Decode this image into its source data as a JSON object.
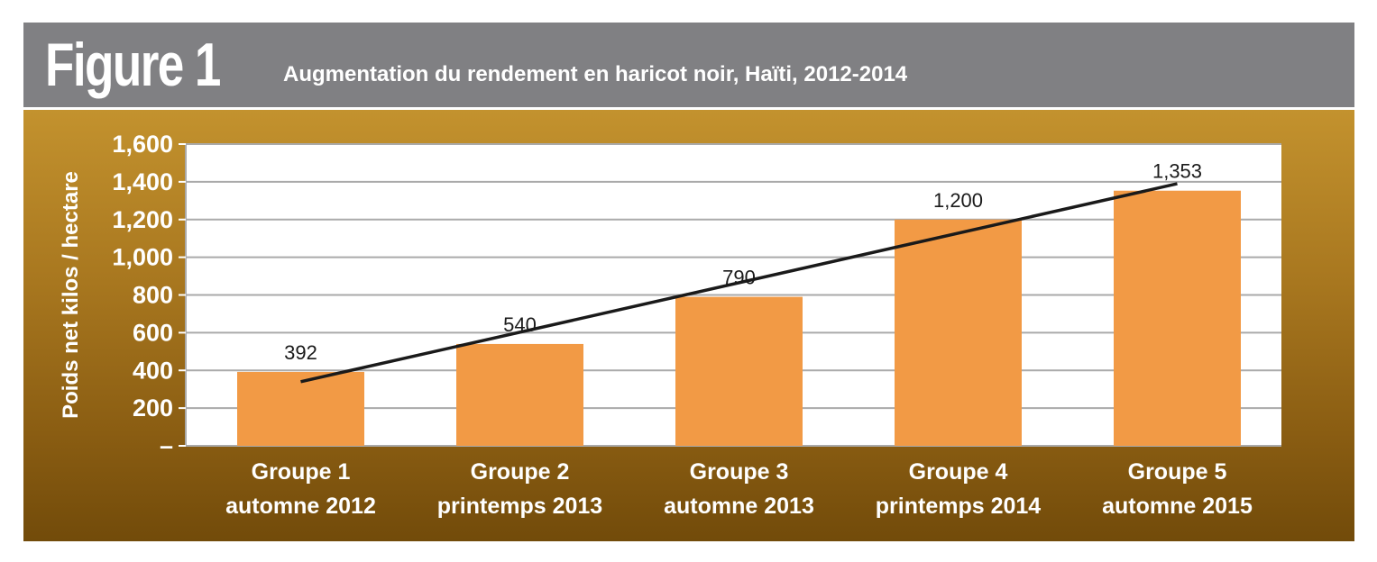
{
  "figure": {
    "label": "Figure 1",
    "title": "Augmentation du rendement en haricot noir, Haïti, 2012-2014"
  },
  "chart_data": {
    "type": "bar",
    "title": "Augmentation du rendement en haricot noir, Haïti, 2012-2014",
    "ylabel": "Poids net kilos / hectare",
    "xlabel": "",
    "ylim": [
      0,
      1600
    ],
    "yticks": [
      0,
      200,
      400,
      600,
      800,
      1000,
      1200,
      1400,
      1600
    ],
    "ytick_labels": [
      "–",
      "200",
      "400",
      "600",
      "800",
      "1,000",
      "1,200",
      "1,400",
      "1,600"
    ],
    "categories": [
      [
        "Groupe 1",
        "automne 2012"
      ],
      [
        "Groupe 2",
        "printemps 2013"
      ],
      [
        "Groupe 3",
        "automne 2013"
      ],
      [
        "Groupe 4",
        "printemps 2014"
      ],
      [
        "Groupe 5",
        "automne 2015"
      ]
    ],
    "values": [
      392,
      540,
      790,
      1200,
      1353
    ],
    "value_labels": [
      "392",
      "540",
      "790",
      "1,200",
      "1,353"
    ],
    "trendline": {
      "type": "linear",
      "start": 340,
      "end": 1390
    },
    "grid": true,
    "colors": {
      "bar": "#f29a45",
      "plot_bg": "#ffffff",
      "grid": "#aaaaaa",
      "trend": "#1a1a1a"
    }
  }
}
